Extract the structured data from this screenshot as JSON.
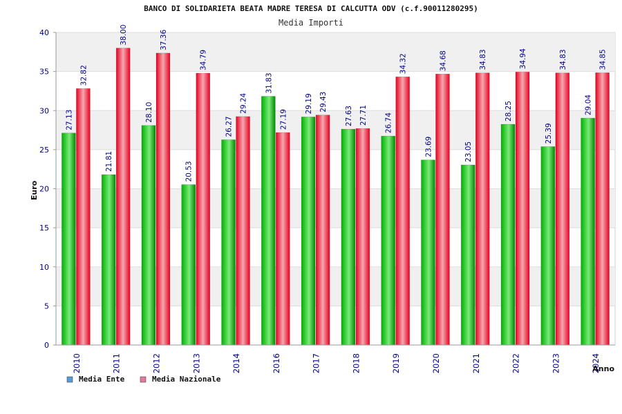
{
  "chart_data": {
    "type": "bar",
    "title": "BANCO DI SOLIDARIETA BEATA MADRE TERESA DI CALCUTTA ODV (c.f.90011280295)",
    "subtitle": "Media Importi",
    "xlabel": "Anno",
    "ylabel": "Euro",
    "ylim": [
      0,
      40
    ],
    "yticks": [
      "0",
      "5",
      "10",
      "15",
      "20",
      "25",
      "30",
      "35",
      "40"
    ],
    "categories": [
      "2010",
      "2011",
      "2012",
      "2013",
      "2014",
      "2016",
      "2017",
      "2018",
      "2019",
      "2020",
      "2021",
      "2022",
      "2023",
      "2024"
    ],
    "series": [
      {
        "name": "Media Ente",
        "values": [
          27.13,
          21.81,
          28.1,
          20.53,
          26.27,
          31.83,
          29.19,
          27.63,
          26.74,
          23.69,
          23.05,
          28.25,
          25.39,
          29.04
        ],
        "labels": [
          "27.13",
          "21.81",
          "28.10",
          "20.53",
          "26.27",
          "31.83",
          "29.19",
          "27.63",
          "26.74",
          "23.69",
          "23.05",
          "28.25",
          "25.39",
          "29.04"
        ]
      },
      {
        "name": "Media Nazionale",
        "values": [
          32.82,
          38.0,
          37.36,
          34.79,
          29.24,
          27.19,
          29.43,
          27.71,
          34.32,
          34.68,
          34.83,
          34.94,
          34.83,
          34.85
        ],
        "labels": [
          "32.82",
          "38.00",
          "37.36",
          "34.79",
          "29.24",
          "27.19",
          "29.43",
          "27.71",
          "34.32",
          "34.68",
          "34.83",
          "34.94",
          "34.83",
          "34.85"
        ]
      }
    ],
    "colors": {
      "ente_dark": "#00a000",
      "ente_light": "#5ee05e",
      "naz_dark": "#e8001c",
      "naz_light": "#f7a5ad",
      "label": "#00008b",
      "band": "#f0f0f0",
      "legend_ente": "#5b9bd5",
      "legend_naz": "#e07ba0"
    }
  }
}
